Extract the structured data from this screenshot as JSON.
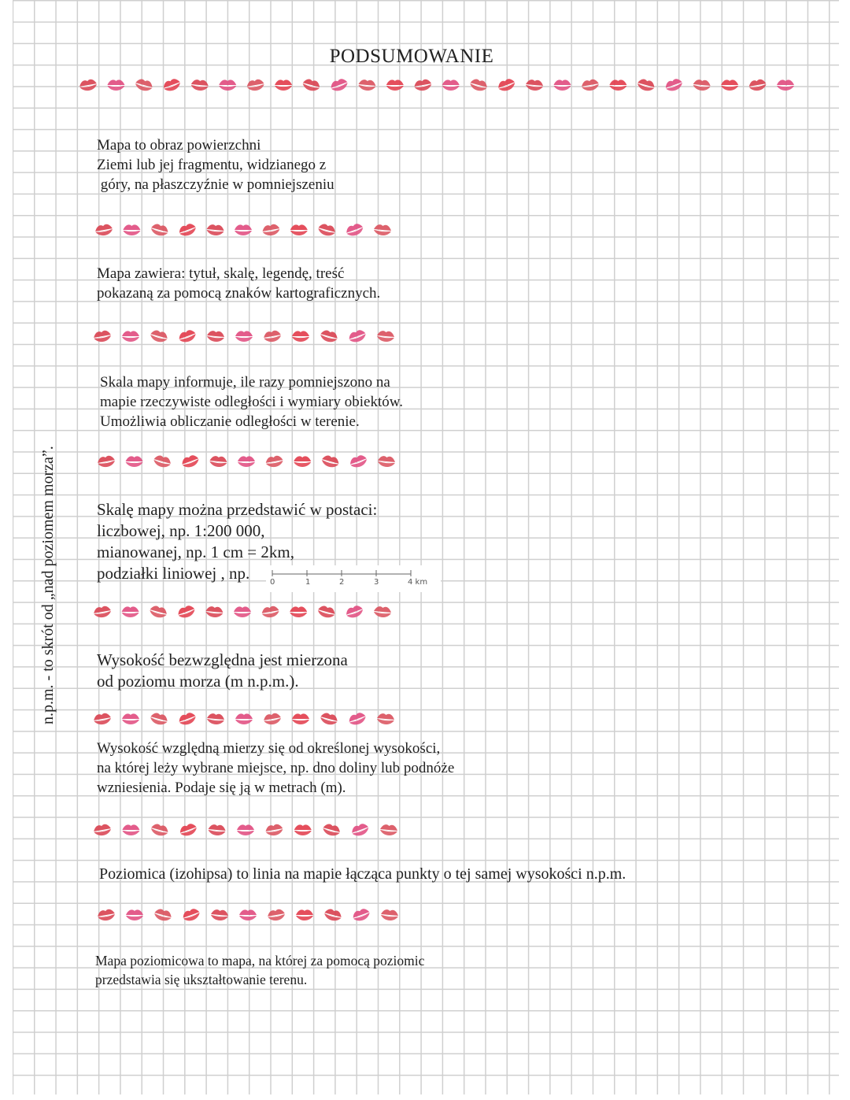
{
  "title": "PODSUMOWANIE",
  "side_note": "n.p.m. - to skrót od „nad poziomem morza”.",
  "blocks": {
    "map_def": "Mapa to obraz powierzchni\nZiemi lub jej fragmentu, widzianego z\n góry, na płaszczyźnie w pomniejszeniu",
    "map_contains": "Mapa zawiera: tytuł, skalę, legendę, treść\npokazaną za pomocą znaków kartograficznych.",
    "scale_info": "Skala mapy informuje, ile razy pomniejszono na\nmapie rzeczywiste odległości i wymiary obiektów.\nUmożliwia obliczanie odległości w terenie.",
    "scale_forms": "Skalę mapy można przedstawić w postaci:\nliczbowej, np. 1:200 000,\nmianowanej, np. 1 cm = 2km,\npodziałki liniowej , np.",
    "absolute_height": "Wysokość bezwzględna jest mierzona\nod poziomu morza (m n.p.m.).",
    "relative_height": "Wysokość względną mierzy się od określonej wysokości,\nna której leży wybrane miejsce, np. dno doliny lub podnóże\nwzniesienia. Podaje się ją w metrach (m).",
    "contour": "Poziomica (izohipsa) to linia na mapie łącząca punkty o tej samej wysokości n.p.m.",
    "contour_map": "Mapa poziomicowa to mapa, na której za pomocą poziomic\nprzedstawia się ukształtowanie terenu."
  },
  "scale_bar": {
    "ticks": [
      "0",
      "1",
      "2",
      "3",
      "4 km"
    ]
  },
  "decoration": {
    "icon": "lipstick-kiss-icon",
    "colors": [
      "#d8404f",
      "#e04a7e",
      "#d9505c",
      "#e23b4a"
    ]
  }
}
